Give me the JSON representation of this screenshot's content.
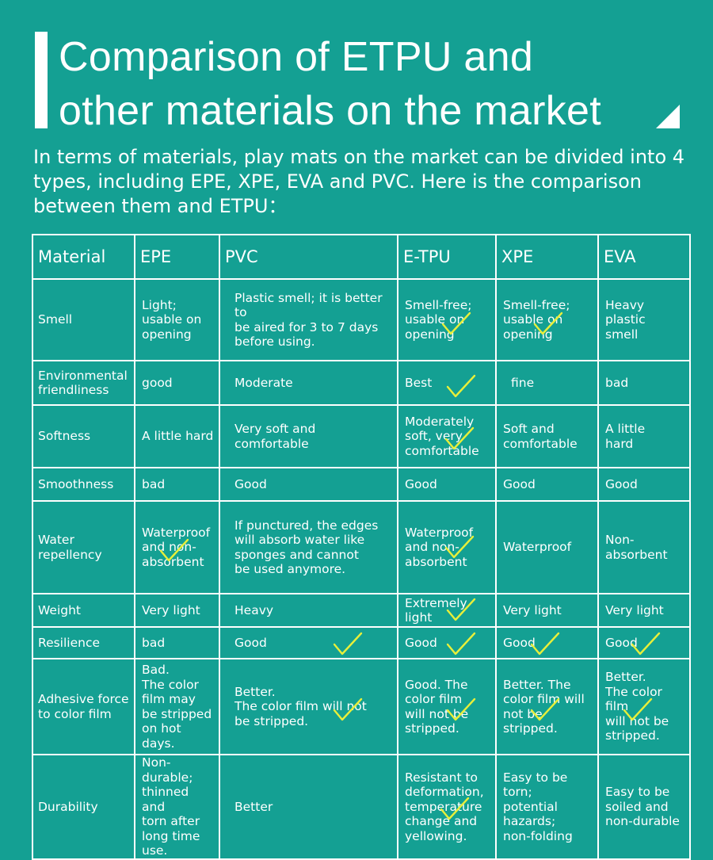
{
  "header": {
    "title_line1": "Comparison of ETPU and",
    "title_line2": "other materials on the market",
    "intro": "In terms of materials, play mats on the market can be divided into 4 types, including EPE, XPE, EVA and PVC. Here is the comparison between them and ETPU："
  },
  "table": {
    "columns": [
      "Material",
      "EPE",
      "PVC",
      "E-TPU",
      "XPE",
      "EVA"
    ],
    "rows": [
      {
        "label": "Smell",
        "cells": [
          "Light;\nusable on\nopening",
          "Plastic smell; it is better to\nbe aired for 3 to 7 days\nbefore using.",
          "Smell-free;\nusable on\nopening",
          "Smell-free;\nusable on\nopening",
          "Heavy\nplastic\nsmell"
        ]
      },
      {
        "label": "Environmental\nfriendliness",
        "cells": [
          "good",
          "Moderate",
          "Best",
          "fine",
          "bad"
        ]
      },
      {
        "label": "Softness",
        "cells": [
          "A little hard",
          "Very soft and\ncomfortable",
          "Moderately\nsoft, very\ncomfortable",
          "Soft and\ncomfortable",
          "A little\nhard"
        ]
      },
      {
        "label": "Smoothness",
        "cells": [
          "bad",
          "Good",
          "Good",
          "Good",
          "Good"
        ]
      },
      {
        "label": "Water\nrepellency",
        "cells": [
          "Waterproof\nand non-\nabsorbent",
          "If punctured, the edges\nwill absorb water like\nsponges and cannot\nbe used anymore.",
          "Waterproof\nand non-\nabsorbent",
          "Waterproof",
          "Non-\nabsorbent"
        ]
      },
      {
        "label": "Weight",
        "cells": [
          "Very light",
          "Heavy",
          "Extremely light",
          "Very light",
          "Very light"
        ]
      },
      {
        "label": "Resilience",
        "cells": [
          "bad",
          "Good",
          "Good",
          "Good",
          "Good"
        ]
      },
      {
        "label": "Adhesive force\n to color film",
        "cells": [
          "Bad.\nThe color\nfilm may\nbe stripped\non hot days.",
          "Better.\nThe color film will not\nbe stripped.",
          "Good.  The\ncolor film\nwill not be\nstripped.",
          "Better.  The\ncolor film will\nnot be stripped.",
          "Better.\nThe color film\nwill not be\nstripped."
        ]
      },
      {
        "label": "Durability",
        "cells": [
          "Non-durable;\nthinned and\ntorn after\nlong time\nuse.",
          "Better",
          "Resistant to\ndeformation,\ntemperature\nchange and\nyellowing.",
          "Easy to be torn;\npotential\nhazards;\nnon-folding",
          "Easy to be\nsoiled and\nnon-durable"
        ]
      }
    ]
  },
  "colors": {
    "background": "#14a093",
    "text": "#ffffff",
    "checkmark": "#e8ef3a"
  },
  "icons": {
    "title_corner": "triangle-corner-icon",
    "mark": "checkmark-icon"
  }
}
